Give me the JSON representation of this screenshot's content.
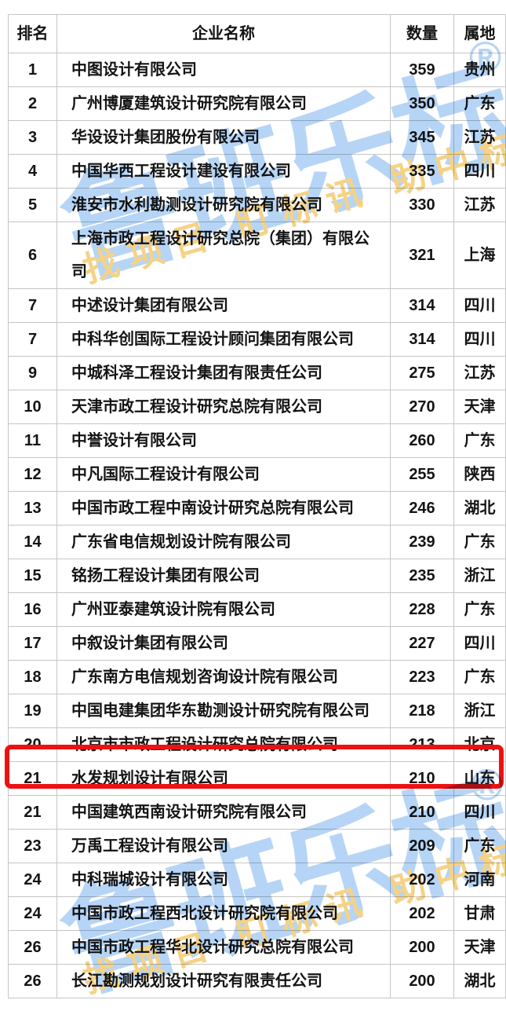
{
  "table": {
    "headers": {
      "rank": "排名",
      "name": "企业名称",
      "count": "数量",
      "region": "属地"
    },
    "rows": [
      {
        "rank": "1",
        "name": "中图设计有限公司",
        "count": "359",
        "region": "贵州"
      },
      {
        "rank": "2",
        "name": "广州博厦建筑设计研究院有限公司",
        "count": "350",
        "region": "广东"
      },
      {
        "rank": "3",
        "name": "华设设计集团股份有限公司",
        "count": "345",
        "region": "江苏"
      },
      {
        "rank": "4",
        "name": "中国华西工程设计建设有限公司",
        "count": "335",
        "region": "四川"
      },
      {
        "rank": "5",
        "name": "淮安市水利勘测设计研究院有限公司",
        "count": "330",
        "region": "江苏"
      },
      {
        "rank": "6",
        "name": "上海市政工程设计研究总院（集团）有限公司",
        "count": "321",
        "region": "上海"
      },
      {
        "rank": "7",
        "name": "中述设计集团有限公司",
        "count": "314",
        "region": "四川"
      },
      {
        "rank": "7",
        "name": "中科华创国际工程设计顾问集团有限公司",
        "count": "314",
        "region": "四川"
      },
      {
        "rank": "9",
        "name": "中城科泽工程设计集团有限责任公司",
        "count": "275",
        "region": "江苏"
      },
      {
        "rank": "10",
        "name": "天津市政工程设计研究总院有限公司",
        "count": "270",
        "region": "天津"
      },
      {
        "rank": "11",
        "name": "中誉设计有限公司",
        "count": "260",
        "region": "广东"
      },
      {
        "rank": "12",
        "name": "中凡国际工程设计有限公司",
        "count": "255",
        "region": "陕西"
      },
      {
        "rank": "13",
        "name": "中国市政工程中南设计研究总院有限公司",
        "count": "246",
        "region": "湖北"
      },
      {
        "rank": "14",
        "name": "广东省电信规划设计院有限公司",
        "count": "239",
        "region": "广东"
      },
      {
        "rank": "15",
        "name": "铭扬工程设计集团有限公司",
        "count": "235",
        "region": "浙江"
      },
      {
        "rank": "16",
        "name": "广州亚泰建筑设计院有限公司",
        "count": "228",
        "region": "广东"
      },
      {
        "rank": "17",
        "name": "中叙设计集团有限公司",
        "count": "227",
        "region": "四川"
      },
      {
        "rank": "18",
        "name": "广东南方电信规划咨询设计院有限公司",
        "count": "223",
        "region": "广东"
      },
      {
        "rank": "19",
        "name": "中国电建集团华东勘测设计研究院有限公司",
        "count": "218",
        "region": "浙江"
      },
      {
        "rank": "20",
        "name": "北京市市政工程设计研究总院有限公司",
        "count": "213",
        "region": "北京"
      },
      {
        "rank": "21",
        "name": "水发规划设计有限公司",
        "count": "210",
        "region": "山东",
        "highlighted": true
      },
      {
        "rank": "21",
        "name": "中国建筑西南设计研究院有限公司",
        "count": "210",
        "region": "四川"
      },
      {
        "rank": "23",
        "name": "万禹工程设计有限公司",
        "count": "209",
        "region": "广东"
      },
      {
        "rank": "24",
        "name": "中科瑞城设计有限公司",
        "count": "202",
        "region": "河南"
      },
      {
        "rank": "24",
        "name": "中国市政工程西北设计研究院有限公司",
        "count": "202",
        "region": "甘肃"
      },
      {
        "rank": "26",
        "name": "中国市政工程华北设计研究总院有限公司",
        "count": "200",
        "region": "天津"
      },
      {
        "rank": "26",
        "name": "长江勘测规划设计研究有限责任公司",
        "count": "200",
        "region": "湖北"
      }
    ]
  },
  "highlight": {
    "row_rank": "21",
    "row_name": "水发规划设计有限公司",
    "color": "#ee1111"
  },
  "watermark": {
    "brand": "鲁班乐标",
    "registered_mark": "®",
    "slogan": "找项目 盯标讯 助中标",
    "brand_color": "#b6d5f6",
    "slogan_color": "#f5d286"
  }
}
